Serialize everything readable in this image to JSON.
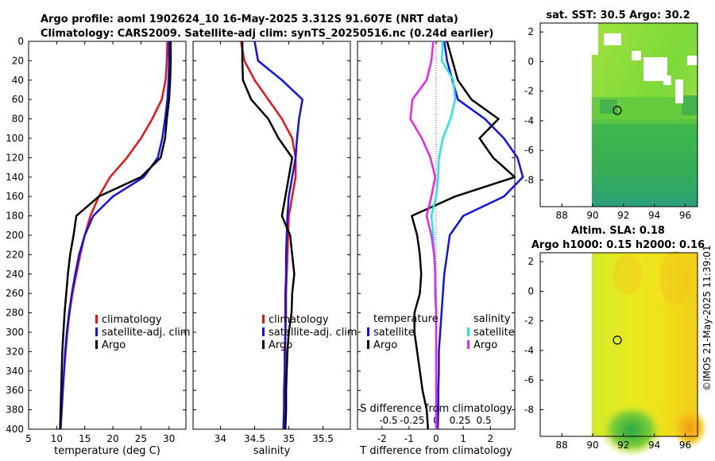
{
  "figure_title": {
    "line1": "Argo profile: aoml 1902624_10 16-May-2025 3.312S 91.607E (NRT data)",
    "line2": "Climatology: CARS2009. Satellite-adj clim: synTS_20250516.nc (0.24d earlier)"
  },
  "side_credit": "©IMOS 21-May-2025 11:39:01",
  "colors": {
    "climatology": "#ee1111",
    "satellite": "#1111ee",
    "argo": "#000000",
    "salinity_satellite": "#22e6e6",
    "salinity_argo": "#ee22ee",
    "zero_line": "#555555"
  },
  "chart_data": [
    {
      "type": "line",
      "panel": "temperature",
      "title": "",
      "xlabel": "temperature (deg C)",
      "ylabel": "",
      "xlim": [
        5,
        33
      ],
      "ylim": [
        400,
        0
      ],
      "xticks": [
        5,
        10,
        15,
        20,
        25,
        30
      ],
      "yticks": [
        0,
        20,
        40,
        60,
        80,
        100,
        120,
        140,
        160,
        180,
        200,
        220,
        240,
        260,
        280,
        300,
        320,
        340,
        360,
        380,
        400
      ],
      "legend": [
        "climatology",
        "satellite-adj. clim",
        "Argo"
      ],
      "series": [
        {
          "name": "climatology",
          "color_key": "climatology",
          "x": [
            29.7,
            29.6,
            29.4,
            28.7,
            27.0,
            25.0,
            22.5,
            19.5,
            17.5,
            16.0,
            15.0,
            14.2,
            13.5,
            12.8,
            12.3,
            11.9,
            11.6,
            11.3,
            11.1,
            10.9,
            10.7
          ],
          "y": [
            0,
            20,
            40,
            60,
            80,
            100,
            120,
            140,
            160,
            180,
            200,
            220,
            240,
            260,
            280,
            300,
            320,
            340,
            360,
            380,
            400
          ]
        },
        {
          "name": "satellite-adj. clim",
          "color_key": "satellite",
          "x": [
            30.0,
            30.0,
            29.9,
            29.7,
            29.3,
            28.8,
            28.0,
            25.5,
            20.0,
            16.5,
            15.0,
            14.0,
            13.3,
            12.7,
            12.2,
            11.8,
            11.5,
            11.3,
            11.1,
            10.9,
            10.7
          ],
          "y": [
            0,
            20,
            40,
            60,
            80,
            100,
            120,
            140,
            160,
            180,
            200,
            220,
            240,
            260,
            280,
            300,
            320,
            340,
            360,
            380,
            400
          ]
        },
        {
          "name": "Argo",
          "color_key": "argo",
          "x": [
            30.3,
            30.3,
            30.2,
            30.0,
            29.6,
            29.3,
            28.5,
            25.0,
            17.5,
            13.5,
            13.0,
            12.4,
            12.0,
            11.7,
            11.4,
            11.2,
            11.0,
            10.9,
            10.8,
            10.7,
            10.6
          ],
          "y": [
            0,
            20,
            40,
            60,
            80,
            100,
            120,
            140,
            160,
            180,
            200,
            220,
            240,
            260,
            280,
            300,
            320,
            340,
            360,
            380,
            400
          ]
        }
      ]
    },
    {
      "type": "line",
      "panel": "salinity",
      "title": "",
      "xlabel": "salinity",
      "ylabel": "",
      "xlim": [
        33.6,
        35.9
      ],
      "ylim": [
        400,
        0
      ],
      "xticks": [
        34,
        34.5,
        35,
        35.5
      ],
      "legend": [
        "climatology",
        "satellite-adj. clim",
        "Argo"
      ],
      "series": [
        {
          "name": "climatology",
          "color_key": "climatology",
          "x": [
            34.3,
            34.35,
            34.5,
            34.7,
            34.9,
            35.05,
            35.1,
            35.1,
            35.05,
            35.0,
            34.99,
            34.98,
            34.97,
            34.96,
            34.96,
            34.95,
            34.95,
            34.94,
            34.94,
            34.93,
            34.93
          ],
          "y": [
            0,
            20,
            40,
            60,
            80,
            100,
            120,
            140,
            160,
            180,
            200,
            220,
            240,
            260,
            280,
            300,
            320,
            340,
            360,
            380,
            400
          ]
        },
        {
          "name": "satellite-adj. clim",
          "color_key": "satellite",
          "x": [
            34.5,
            34.55,
            34.9,
            35.2,
            35.15,
            35.12,
            35.1,
            35.05,
            35.0,
            34.98,
            34.97,
            34.96,
            34.96,
            34.95,
            34.95,
            34.95,
            34.94,
            34.94,
            34.93,
            34.93,
            34.92
          ],
          "y": [
            0,
            20,
            40,
            60,
            80,
            100,
            120,
            140,
            160,
            180,
            200,
            220,
            240,
            260,
            280,
            300,
            320,
            340,
            360,
            380,
            400
          ]
        },
        {
          "name": "Argo",
          "color_key": "argo",
          "x": [
            34.32,
            34.32,
            34.33,
            34.45,
            34.7,
            34.85,
            35.05,
            35.0,
            34.95,
            34.9,
            35.02,
            35.05,
            35.08,
            35.05,
            35.04,
            35.0,
            34.98,
            34.97,
            34.96,
            34.96,
            34.95
          ],
          "y": [
            0,
            20,
            40,
            60,
            80,
            100,
            120,
            140,
            160,
            180,
            200,
            220,
            240,
            260,
            280,
            300,
            320,
            340,
            360,
            380,
            400
          ]
        }
      ]
    },
    {
      "type": "line",
      "panel": "difference",
      "title": "",
      "xlabel": "T difference from climatology",
      "xlabel_top": "S difference from climatology",
      "xlim": [
        -2.9,
        2.9
      ],
      "ylim": [
        400,
        0
      ],
      "xticks": [
        -2,
        -1,
        0,
        1,
        2
      ],
      "s_ticks": [
        -0.5,
        -0.25,
        0,
        0.25,
        0.5
      ],
      "legend_headers": [
        "temperature",
        "salinity"
      ],
      "legend": [
        "satellite",
        "Argo",
        "satellite",
        "Argo"
      ],
      "series": [
        {
          "name": "T satellite",
          "color_key": "satellite",
          "x": [
            0.3,
            0.4,
            0.6,
            0.8,
            1.8,
            2.5,
            3.0,
            3.2,
            2.5,
            1.0,
            0.5,
            0.4,
            0.3,
            0.25,
            0.2,
            0.15,
            0.1,
            0.1,
            0.08,
            0.08,
            0.06
          ],
          "y": [
            0,
            20,
            40,
            60,
            80,
            100,
            120,
            140,
            160,
            180,
            200,
            220,
            240,
            260,
            280,
            300,
            320,
            340,
            360,
            380,
            400
          ]
        },
        {
          "name": "T Argo",
          "color_key": "argo",
          "x": [
            0.4,
            0.6,
            0.8,
            1.3,
            2.3,
            1.6,
            2.1,
            2.9,
            0.7,
            -0.9,
            -0.7,
            -0.6,
            -0.55,
            -0.6,
            -0.8,
            -0.8,
            -0.7,
            -0.6,
            -0.5,
            -0.35,
            -0.3
          ],
          "y": [
            0,
            20,
            40,
            60,
            80,
            100,
            120,
            140,
            160,
            180,
            200,
            220,
            240,
            260,
            280,
            300,
            320,
            340,
            360,
            380,
            400
          ]
        },
        {
          "name": "S satellite",
          "color_key": "salinity_satellite",
          "x": [
            0.07,
            0.06,
            0.18,
            0.2,
            0.15,
            0.07,
            0.03,
            0.02,
            0.0,
            -0.05,
            -0.03,
            -0.02,
            -0.01,
            0.0,
            0.0,
            0.0,
            0.0,
            0.0,
            0.0,
            0.0,
            0.0
          ],
          "y": [
            0,
            20,
            40,
            60,
            80,
            100,
            120,
            140,
            160,
            180,
            200,
            220,
            240,
            260,
            280,
            300,
            320,
            340,
            360,
            380,
            400
          ]
        },
        {
          "name": "S Argo",
          "color_key": "salinity_argo",
          "x": [
            -0.03,
            -0.05,
            -0.1,
            -0.25,
            -0.27,
            -0.15,
            -0.06,
            -0.01,
            -0.05,
            -0.1,
            -0.05,
            -0.02,
            -0.01,
            -0.01,
            0.0,
            0.0,
            0.0,
            0.0,
            0.0,
            0.0,
            0.0
          ],
          "y": [
            0,
            20,
            40,
            60,
            80,
            100,
            120,
            140,
            160,
            180,
            200,
            220,
            240,
            260,
            280,
            300,
            320,
            340,
            360,
            380,
            400
          ]
        }
      ]
    },
    {
      "type": "heatmap",
      "panel": "sst_map",
      "title": "sat. SST: 30.5 Argo: 30.2",
      "xlim": [
        86.6,
        96.8
      ],
      "ylim": [
        -9.8,
        2.6
      ],
      "xticks": [
        88,
        90,
        92,
        94,
        96
      ],
      "yticks": [
        2,
        0,
        -2,
        -4,
        -6,
        -8
      ],
      "argo_position": {
        "lon": 91.6,
        "lat": -3.3
      }
    },
    {
      "type": "heatmap",
      "panel": "sla_map",
      "title": "Altim. SLA: 0.18",
      "subtitle": "Argo h1000: 0.15 h2000: 0.16",
      "xlim": [
        86.6,
        96.8
      ],
      "ylim": [
        -9.8,
        2.6
      ],
      "xticks": [
        88,
        90,
        92,
        94,
        96
      ],
      "yticks": [
        2,
        0,
        -2,
        -4,
        -6,
        -8
      ],
      "argo_position": {
        "lon": 91.6,
        "lat": -3.3
      }
    }
  ]
}
